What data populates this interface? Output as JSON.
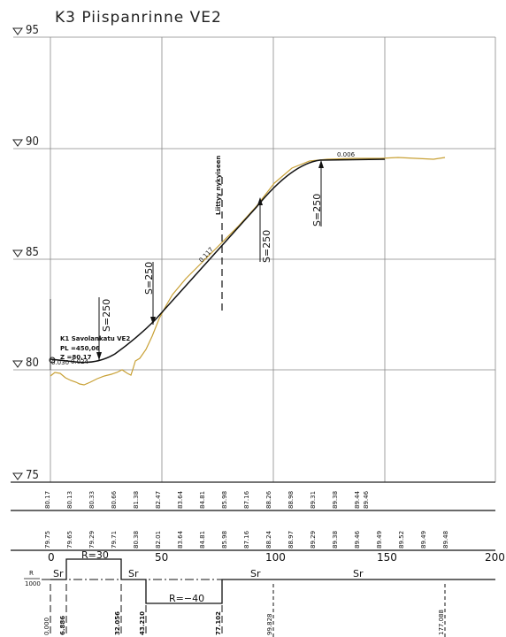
{
  "title": "K3 Piispanrinne VE2",
  "elevation_labels": [
    "95",
    "90",
    "85",
    "80",
    "75"
  ],
  "chainage_labels": [
    "0",
    "50",
    "100",
    "150",
    "200"
  ],
  "design_row": [
    "80.17",
    "80.13",
    "80.33",
    "80.66",
    "81.38",
    "82.47",
    "83.64",
    "84.81",
    "85.98",
    "87.16",
    "88.26",
    "88.98",
    "89.31",
    "89.38",
    "89.44",
    "89.46"
  ],
  "ground_row": [
    "79.75",
    "79.65",
    "79.29",
    "79.71",
    "80.38",
    "82.01",
    "83.64",
    "84.81",
    "85.98",
    "87.16",
    "88.24",
    "88.97",
    "89.29",
    "89.38",
    "89.46",
    "89.49",
    "89.52",
    "89.49",
    "89.48"
  ],
  "curve_labels": [
    "S=250",
    "S=250",
    "S=250",
    "S=250"
  ],
  "slopes": [
    "0.030",
    "0.024",
    "0.117",
    "0.006"
  ],
  "annotation": {
    "connect": "Liittyy nykyiseen",
    "k1_line1": "K1 Savolankatu VE2",
    "k1_line2": "PL =450,06",
    "k1_line3": "Z =80,17"
  },
  "curvature": {
    "r_label": "R",
    "r_unit": "1000",
    "sr": [
      "Sr",
      "Sr",
      "Sr",
      "Sr"
    ],
    "r_values": [
      "R=30",
      "R=−40"
    ],
    "points": [
      "0.000",
      "6.886",
      "32.056",
      "43.210",
      "77.102",
      "99.828",
      "177.088"
    ]
  }
}
